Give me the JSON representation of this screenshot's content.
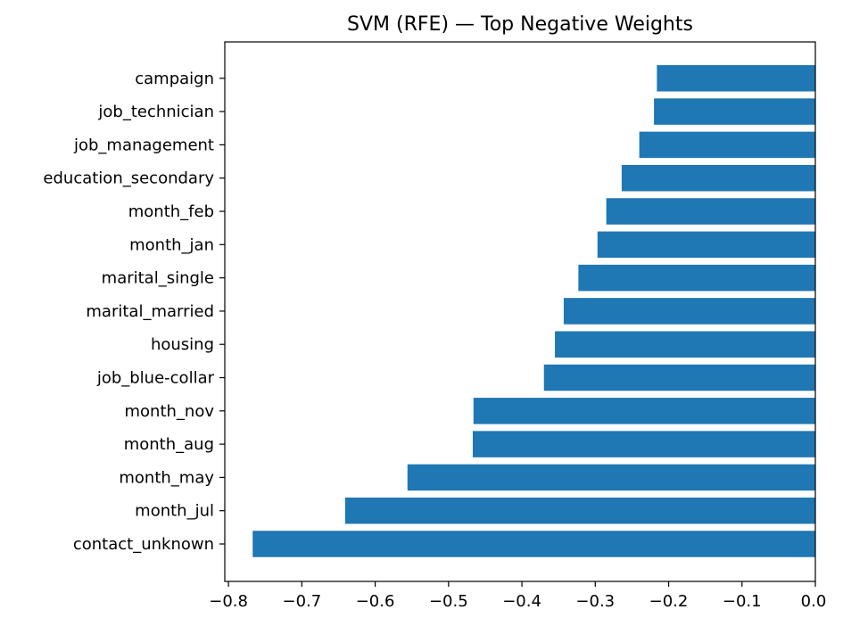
{
  "chart_data": {
    "type": "bar",
    "orientation": "horizontal",
    "title": "SVM (RFE) — Top Negative Weights",
    "xlabel": "",
    "ylabel": "",
    "xlim": [
      -0.805,
      0.0
    ],
    "xticks": [
      -0.8,
      -0.7,
      -0.6,
      -0.5,
      -0.4,
      -0.3,
      -0.2,
      -0.1,
      0.0
    ],
    "xtick_labels": [
      "−0.8",
      "−0.7",
      "−0.6",
      "−0.5",
      "−0.4",
      "−0.3",
      "−0.2",
      "−0.1",
      "0.0"
    ],
    "categories": [
      "contact_unknown",
      "month_jul",
      "month_may",
      "month_aug",
      "month_nov",
      "job_blue-collar",
      "housing",
      "marital_married",
      "marital_single",
      "month_jan",
      "month_feb",
      "education_secondary",
      "job_management",
      "job_technician",
      "campaign"
    ],
    "values": [
      -0.767,
      -0.641,
      -0.556,
      -0.467,
      -0.466,
      -0.37,
      -0.355,
      -0.343,
      -0.323,
      -0.297,
      -0.285,
      -0.264,
      -0.24,
      -0.22,
      -0.216
    ],
    "bar_color": "#1f77b4",
    "grid": false,
    "legend": "none"
  }
}
